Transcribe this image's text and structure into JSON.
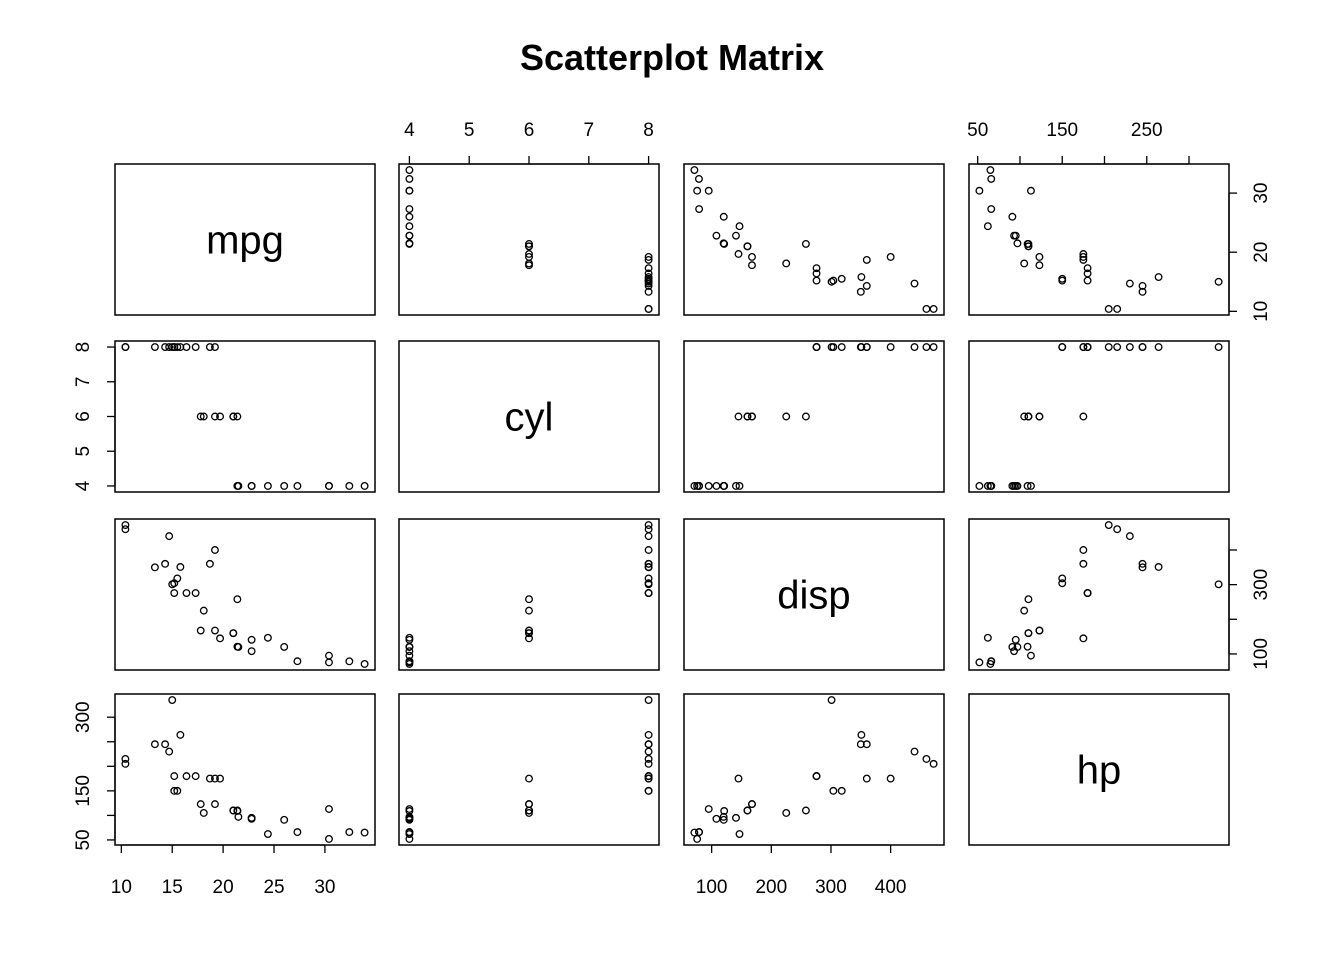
{
  "chart_data": {
    "type": "scatter-matrix",
    "title": "Scatterplot Matrix",
    "variables": [
      "mpg",
      "cyl",
      "disp",
      "hp"
    ],
    "ranges": {
      "mpg": [
        10.4,
        33.9
      ],
      "cyl": [
        4,
        8
      ],
      "disp": [
        71.1,
        472
      ],
      "hp": [
        52,
        335
      ]
    },
    "ticks": {
      "mpg": [
        10,
        15,
        20,
        25,
        30
      ],
      "cyl": [
        4,
        5,
        6,
        7,
        8
      ],
      "disp": [
        100,
        200,
        300,
        400
      ],
      "hp": [
        50,
        150,
        250
      ]
    },
    "tick_labels_left": {
      "mpg": [
        "10",
        "20",
        "30"
      ],
      "cyl": [
        "4",
        "5",
        "6",
        "7",
        "8"
      ],
      "disp": [
        "100",
        "300"
      ],
      "hp": [
        "50",
        "150",
        "300"
      ]
    },
    "tick_values_left": {
      "mpg": [
        10,
        20,
        30
      ],
      "cyl": [
        4,
        5,
        6,
        7,
        8
      ],
      "disp": [
        100,
        200,
        300,
        400
      ],
      "hp": [
        50,
        100,
        150,
        200,
        250,
        300
      ]
    },
    "top_labels": {
      "cyl": [
        "4",
        "5",
        "6",
        "7",
        "8"
      ],
      "hp": [
        "50",
        "150",
        "250"
      ]
    },
    "bottom_labels": {
      "mpg": [
        "10",
        "15",
        "20",
        "25",
        "30"
      ],
      "disp": [
        "100",
        "200",
        "300",
        "400"
      ]
    },
    "right_labels": {
      "mpg": [
        "10",
        "20",
        "30"
      ],
      "disp": [
        "100",
        "300"
      ]
    },
    "observations": [
      {
        "mpg": 21.0,
        "cyl": 6,
        "disp": 160.0,
        "hp": 110
      },
      {
        "mpg": 21.0,
        "cyl": 6,
        "disp": 160.0,
        "hp": 110
      },
      {
        "mpg": 22.8,
        "cyl": 4,
        "disp": 108.0,
        "hp": 93
      },
      {
        "mpg": 21.4,
        "cyl": 6,
        "disp": 258.0,
        "hp": 110
      },
      {
        "mpg": 18.7,
        "cyl": 8,
        "disp": 360.0,
        "hp": 175
      },
      {
        "mpg": 18.1,
        "cyl": 6,
        "disp": 225.0,
        "hp": 105
      },
      {
        "mpg": 14.3,
        "cyl": 8,
        "disp": 360.0,
        "hp": 245
      },
      {
        "mpg": 24.4,
        "cyl": 4,
        "disp": 146.7,
        "hp": 62
      },
      {
        "mpg": 22.8,
        "cyl": 4,
        "disp": 140.8,
        "hp": 95
      },
      {
        "mpg": 19.2,
        "cyl": 6,
        "disp": 167.6,
        "hp": 123
      },
      {
        "mpg": 17.8,
        "cyl": 6,
        "disp": 167.6,
        "hp": 123
      },
      {
        "mpg": 16.4,
        "cyl": 8,
        "disp": 275.8,
        "hp": 180
      },
      {
        "mpg": 17.3,
        "cyl": 8,
        "disp": 275.8,
        "hp": 180
      },
      {
        "mpg": 15.2,
        "cyl": 8,
        "disp": 275.8,
        "hp": 180
      },
      {
        "mpg": 10.4,
        "cyl": 8,
        "disp": 472.0,
        "hp": 205
      },
      {
        "mpg": 10.4,
        "cyl": 8,
        "disp": 460.0,
        "hp": 215
      },
      {
        "mpg": 14.7,
        "cyl": 8,
        "disp": 440.0,
        "hp": 230
      },
      {
        "mpg": 32.4,
        "cyl": 4,
        "disp": 78.7,
        "hp": 66
      },
      {
        "mpg": 30.4,
        "cyl": 4,
        "disp": 75.7,
        "hp": 52
      },
      {
        "mpg": 33.9,
        "cyl": 4,
        "disp": 71.1,
        "hp": 65
      },
      {
        "mpg": 21.5,
        "cyl": 4,
        "disp": 120.1,
        "hp": 97
      },
      {
        "mpg": 15.5,
        "cyl": 8,
        "disp": 318.0,
        "hp": 150
      },
      {
        "mpg": 15.2,
        "cyl": 8,
        "disp": 304.0,
        "hp": 150
      },
      {
        "mpg": 13.3,
        "cyl": 8,
        "disp": 350.0,
        "hp": 245
      },
      {
        "mpg": 19.2,
        "cyl": 8,
        "disp": 400.0,
        "hp": 175
      },
      {
        "mpg": 27.3,
        "cyl": 4,
        "disp": 79.0,
        "hp": 66
      },
      {
        "mpg": 26.0,
        "cyl": 4,
        "disp": 120.3,
        "hp": 91
      },
      {
        "mpg": 30.4,
        "cyl": 4,
        "disp": 95.1,
        "hp": 113
      },
      {
        "mpg": 15.8,
        "cyl": 8,
        "disp": 351.0,
        "hp": 264
      },
      {
        "mpg": 19.7,
        "cyl": 6,
        "disp": 145.0,
        "hp": 175
      },
      {
        "mpg": 15.0,
        "cyl": 8,
        "disp": 301.0,
        "hp": 335
      },
      {
        "mpg": 21.4,
        "cyl": 4,
        "disp": 121.0,
        "hp": 109
      }
    ]
  }
}
